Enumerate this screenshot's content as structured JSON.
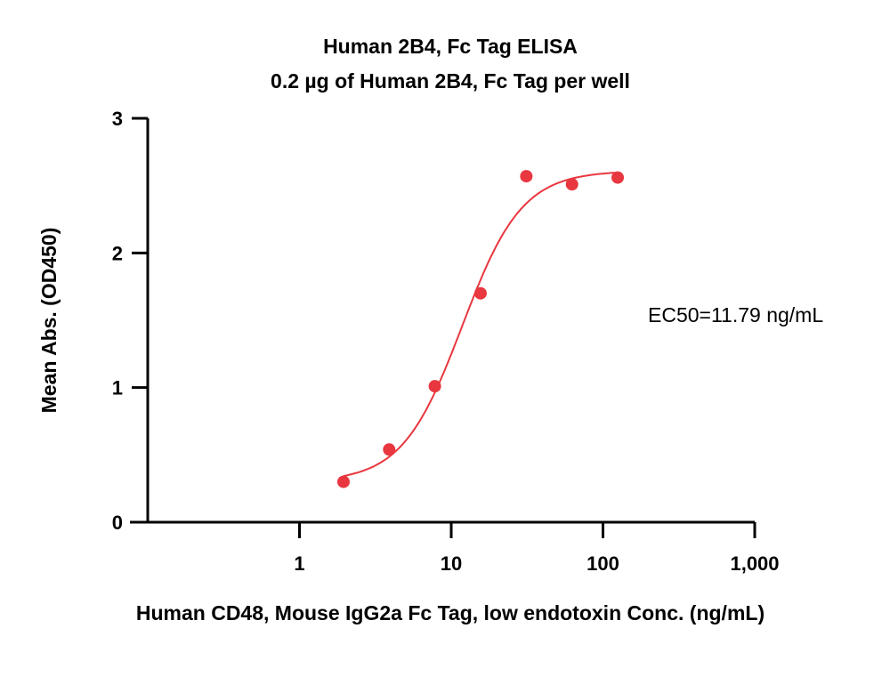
{
  "chart_data": {
    "type": "scatter",
    "title": "Human 2B4, Fc Tag ELISA",
    "subtitle": "0.2 µg of Human 2B4, Fc Tag per well",
    "xlabel": "Human CD48, Mouse IgG2a Fc Tag, low endotoxin Conc. (ng/mL)",
    "ylabel": "Mean Abs. (OD450)",
    "x_scale": "log",
    "xlim": [
      0.1,
      1000
    ],
    "ylim": [
      0,
      3
    ],
    "x_ticks": [
      1,
      10,
      100,
      1000
    ],
    "x_tick_labels": [
      "1",
      "10",
      "100",
      "1,000"
    ],
    "y_ticks": [
      0,
      1,
      2,
      3
    ],
    "y_tick_labels": [
      "0",
      "1",
      "2",
      "3"
    ],
    "grid": false,
    "series": [
      {
        "color": "#e8373f",
        "x": [
          1.95,
          3.9,
          7.8,
          15.6,
          31.25,
          62.5,
          125
        ],
        "y": [
          0.3,
          0.54,
          1.01,
          1.7,
          2.57,
          2.51,
          2.56
        ]
      }
    ],
    "fit": {
      "type": "4PL",
      "bottom": 0.3,
      "top": 2.61,
      "ec50": 11.79,
      "hill": 2.2,
      "x_range": [
        1.95,
        125
      ],
      "color": "#e8373f"
    },
    "annotations": [
      {
        "text": "EC50=11.79 ng/mL"
      }
    ]
  }
}
